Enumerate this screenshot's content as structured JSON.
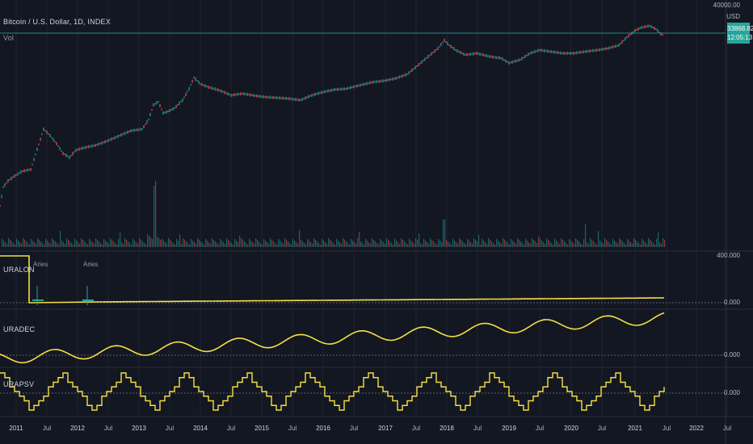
{
  "header": {
    "symbol_title": "Bitcoin / U.S. Dollar, 1D, INDEX",
    "volume_label": "Vol",
    "currency": "USD"
  },
  "price_axis": {
    "top_value": "40000.00",
    "last_price": "33868.82",
    "countdown": "12:05:13"
  },
  "indicators": [
    {
      "name": "URALON",
      "axis_top": "400.000",
      "axis_zero": "0.000"
    },
    {
      "name": "URADEC",
      "axis_zero": "0.000"
    },
    {
      "name": "URAPSV",
      "axis_zero": "0.000"
    }
  ],
  "markers": [
    "Aries",
    "Aries"
  ],
  "x_axis": {
    "labels": [
      "2011",
      "Jul",
      "2012",
      "Jul",
      "2013",
      "Jul",
      "2014",
      "Jul",
      "2015",
      "Jul",
      "2016",
      "Jul",
      "2017",
      "Jul",
      "2018",
      "Jul",
      "2019",
      "Jul",
      "2020",
      "Jul",
      "2021",
      "Jul",
      "2022",
      "Jul"
    ]
  },
  "colors": {
    "background": "#131722",
    "up": "#26a69a",
    "down": "#ef5350",
    "indicator_line": "#f5e042",
    "price_line": "#26a69a",
    "grid": "#1f2330"
  }
}
